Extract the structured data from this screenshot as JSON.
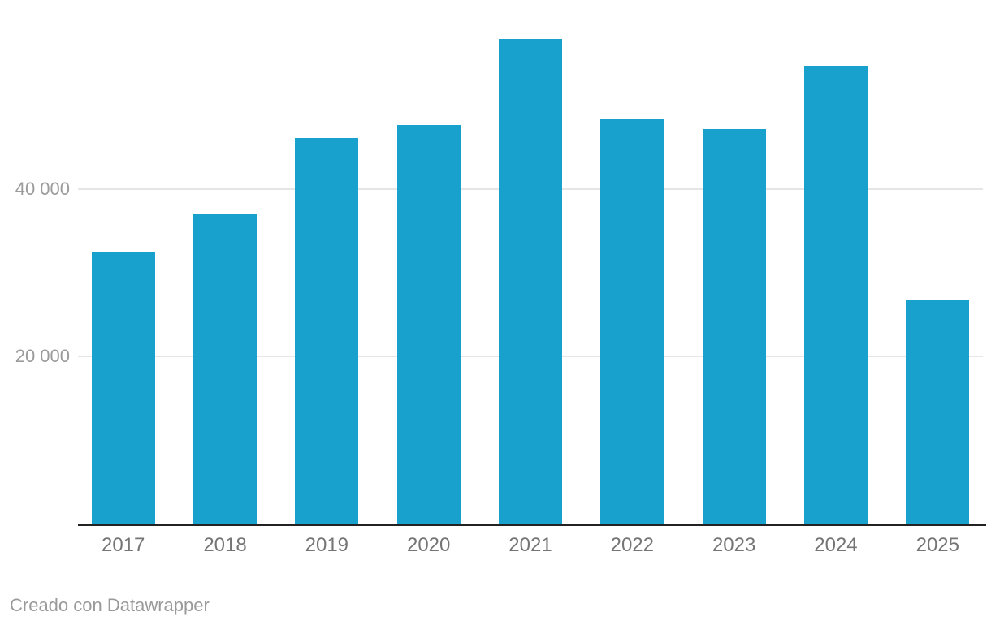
{
  "chart_data": {
    "type": "bar",
    "title": "",
    "xlabel": "",
    "ylabel": "",
    "categories": [
      "2017",
      "2018",
      "2019",
      "2020",
      "2021",
      "2022",
      "2023",
      "2024",
      "2025"
    ],
    "values": [
      32500,
      37000,
      46100,
      47600,
      57900,
      48400,
      47100,
      54700,
      26800
    ],
    "ylim": [
      0,
      62500
    ],
    "yticks": [
      {
        "value": 20000,
        "label": "20 000"
      },
      {
        "value": 40000,
        "label": "40 000"
      }
    ],
    "grid": "horizontal",
    "legend": "none",
    "bar_color": "#18a1cd",
    "axis_line_color": "#222222",
    "gridline_color": "#e6e6e6",
    "ytick_label_color": "#9b9b9b",
    "xtick_label_color": "#757575",
    "background_color": "#ffffff"
  },
  "footer": {
    "credit": "Creado con Datawrapper"
  }
}
